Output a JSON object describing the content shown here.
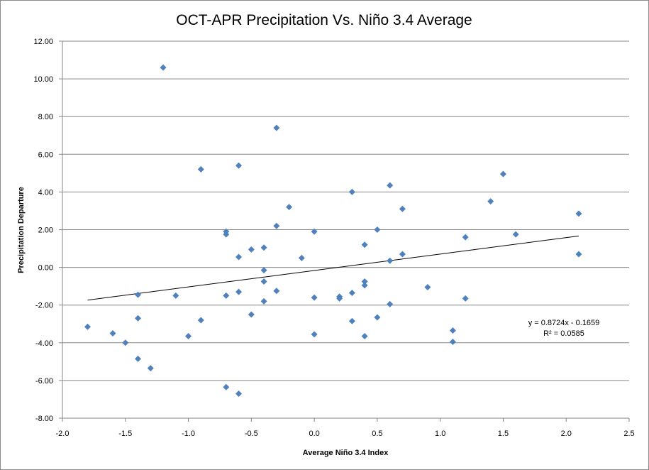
{
  "chart_data": {
    "type": "scatter",
    "title": "OCT-APR Precipitation Vs. Niño 3.4 Average",
    "xlabel": "Average Niño 3.4 Index",
    "ylabel": "Precipitation Departure",
    "xlim": [
      -2.0,
      2.5
    ],
    "ylim": [
      -8.0,
      12.0
    ],
    "x_ticks": [
      "-2.0",
      "-1.5",
      "-1.0",
      "-0.5",
      "0.0",
      "0.5",
      "1.0",
      "1.5",
      "2.0",
      "2.5"
    ],
    "y_ticks": [
      "12.00",
      "10.00",
      "8.00",
      "6.00",
      "4.00",
      "2.00",
      "0.00",
      "-2.00",
      "-4.00",
      "-6.00",
      "-8.00"
    ],
    "grid": "horizontal",
    "marker_color": "#4f81bd",
    "trendline": {
      "slope": 0.8724,
      "intercept": -0.1659,
      "x_range": [
        -1.8,
        2.1
      ],
      "equation_label": "y = 0.8724x - 0.1659",
      "r2_label": "R² = 0.0585"
    },
    "points": [
      {
        "x": -1.8,
        "y": -3.15
      },
      {
        "x": -1.6,
        "y": -3.5
      },
      {
        "x": -1.5,
        "y": -4.0
      },
      {
        "x": -1.4,
        "y": -1.45
      },
      {
        "x": -1.4,
        "y": -2.7
      },
      {
        "x": -1.4,
        "y": -4.85
      },
      {
        "x": -1.3,
        "y": -5.35
      },
      {
        "x": -1.2,
        "y": 10.6
      },
      {
        "x": -1.1,
        "y": -1.5
      },
      {
        "x": -1.0,
        "y": -3.65
      },
      {
        "x": -0.9,
        "y": 5.2
      },
      {
        "x": -0.9,
        "y": -2.8
      },
      {
        "x": -0.7,
        "y": 1.9
      },
      {
        "x": -0.7,
        "y": 1.75
      },
      {
        "x": -0.7,
        "y": -1.5
      },
      {
        "x": -0.7,
        "y": -6.35
      },
      {
        "x": -0.6,
        "y": 5.4
      },
      {
        "x": -0.6,
        "y": 0.55
      },
      {
        "x": -0.6,
        "y": -1.3
      },
      {
        "x": -0.6,
        "y": -6.7
      },
      {
        "x": -0.5,
        "y": 0.95
      },
      {
        "x": -0.5,
        "y": -2.5
      },
      {
        "x": -0.4,
        "y": 1.05
      },
      {
        "x": -0.4,
        "y": -0.15
      },
      {
        "x": -0.4,
        "y": -0.75
      },
      {
        "x": -0.4,
        "y": -1.8
      },
      {
        "x": -0.3,
        "y": 7.4
      },
      {
        "x": -0.3,
        "y": 2.2
      },
      {
        "x": -0.3,
        "y": -1.25
      },
      {
        "x": -0.2,
        "y": 3.2
      },
      {
        "x": -0.1,
        "y": 0.5
      },
      {
        "x": 0.0,
        "y": 1.9
      },
      {
        "x": 0.0,
        "y": -1.6
      },
      {
        "x": 0.0,
        "y": -3.55
      },
      {
        "x": 0.2,
        "y": -1.55
      },
      {
        "x": 0.2,
        "y": -1.65
      },
      {
        "x": 0.3,
        "y": 4.0
      },
      {
        "x": 0.3,
        "y": -1.35
      },
      {
        "x": 0.3,
        "y": -2.85
      },
      {
        "x": 0.4,
        "y": 1.2
      },
      {
        "x": 0.4,
        "y": -0.75
      },
      {
        "x": 0.4,
        "y": -0.95
      },
      {
        "x": 0.4,
        "y": -3.65
      },
      {
        "x": 0.5,
        "y": 2.0
      },
      {
        "x": 0.5,
        "y": -2.65
      },
      {
        "x": 0.6,
        "y": 4.35
      },
      {
        "x": 0.6,
        "y": 0.35
      },
      {
        "x": 0.6,
        "y": -1.95
      },
      {
        "x": 0.7,
        "y": 3.1
      },
      {
        "x": 0.7,
        "y": 0.7
      },
      {
        "x": 0.9,
        "y": -1.05
      },
      {
        "x": 1.1,
        "y": -3.35
      },
      {
        "x": 1.1,
        "y": -3.95
      },
      {
        "x": 1.2,
        "y": 1.6
      },
      {
        "x": 1.2,
        "y": -1.65
      },
      {
        "x": 1.4,
        "y": 3.5
      },
      {
        "x": 1.5,
        "y": 4.95
      },
      {
        "x": 1.6,
        "y": 1.75
      },
      {
        "x": 2.1,
        "y": 2.85
      },
      {
        "x": 2.1,
        "y": 0.7
      }
    ]
  }
}
